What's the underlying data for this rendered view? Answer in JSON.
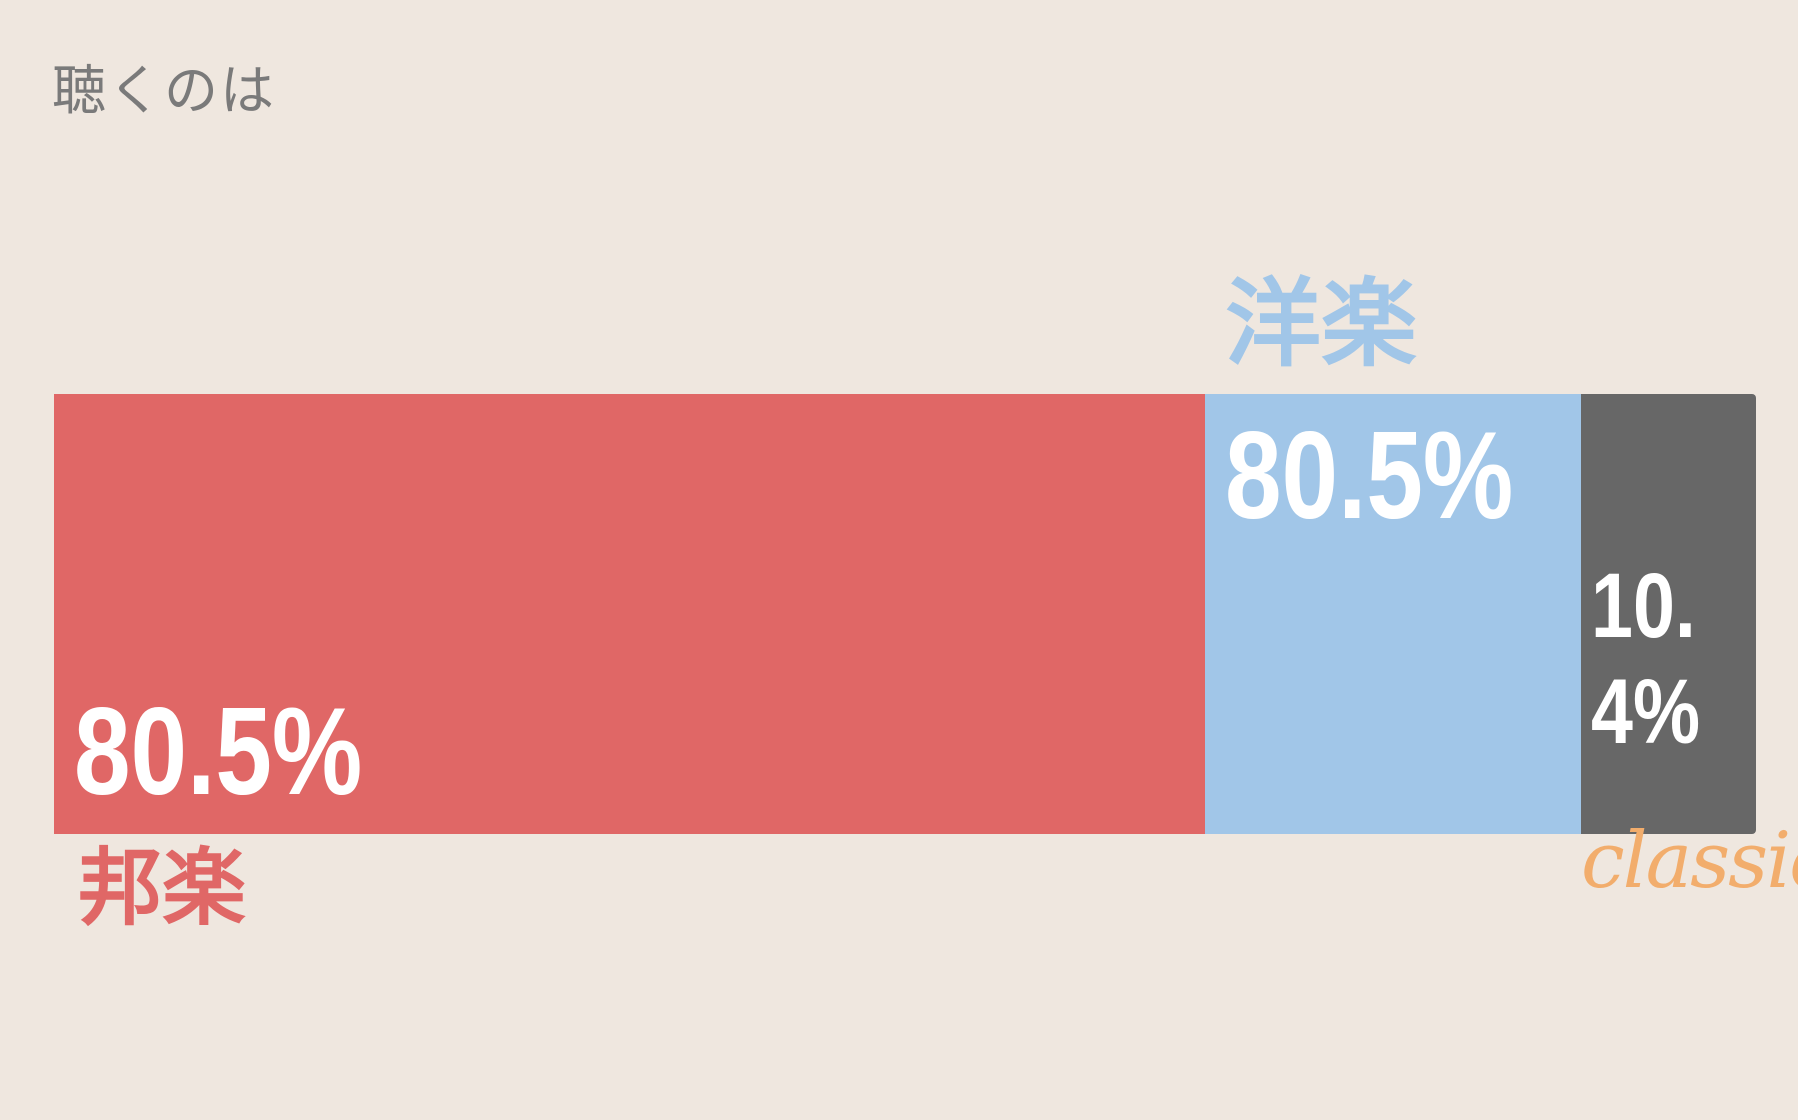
{
  "colors": {
    "background": "#efe7df",
    "title": "#7a7a7a"
  },
  "chart_data": {
    "type": "bar",
    "orientation": "horizontal-stacked",
    "title": "聴くのは",
    "legend": "none",
    "grid": false,
    "segments": [
      {
        "name": "邦楽",
        "value_label": "80.5%",
        "color": "#e06766",
        "label_color": "#e06766"
      },
      {
        "name": "洋楽",
        "value_label": "80.5%",
        "color": "#a1c6e8",
        "label_color": "#a1c6e8"
      },
      {
        "name": "classic",
        "value_label": "10.4%",
        "color": "#676767",
        "label_color": "#f2ad6c"
      }
    ]
  }
}
